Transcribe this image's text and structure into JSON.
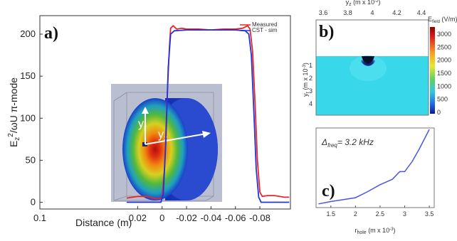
{
  "figure": {
    "panels": [
      "a)",
      "b)",
      "c)"
    ]
  },
  "chart_data": [
    {
      "type": "line",
      "xlabel": "Distance (m)",
      "ylabel_main": "E",
      "ylabel_sub": "z",
      "ylabel_sup": "2",
      "ylabel_rest": "/ωU  π-mode",
      "xlim": [
        0.1,
        -0.105
      ],
      "ylim": [
        -8,
        222
      ],
      "xticks": [
        0.02,
        0,
        -0.02,
        -0.04,
        -0.06,
        -0.08,
        0.1
      ],
      "xtick_labels": [
        "0.02",
        "0",
        "-0.02",
        "-0.04",
        "-0.06",
        "-0.08",
        "0.1"
      ],
      "yticks": [
        0,
        50,
        100,
        150,
        200
      ],
      "ytick_labels": [
        "0",
        "50",
        "100",
        "150",
        "200"
      ],
      "legend_position": "top-right",
      "series": [
        {
          "name": "Measured",
          "color": "#e8262a",
          "x": [
            0.029,
            0.02,
            0.012,
            0.005,
            0.0,
            -0.002,
            -0.004,
            -0.006,
            -0.007,
            -0.009,
            -0.012,
            -0.016,
            -0.02,
            -0.03,
            -0.04,
            -0.05,
            -0.06,
            -0.066,
            -0.07,
            -0.072,
            -0.074,
            -0.076,
            -0.078,
            -0.08,
            -0.082,
            -0.086,
            -0.092,
            -0.1,
            -0.104
          ],
          "y": [
            5,
            7,
            7,
            4,
            5,
            40,
            120,
            185,
            207,
            210,
            206,
            207,
            206,
            206,
            205,
            206,
            206,
            207,
            210,
            206,
            180,
            120,
            50,
            12,
            7,
            8,
            8,
            6,
            6
          ]
        },
        {
          "name": "CST - sim",
          "color": "#2233dd",
          "x": [
            0.029,
            0.02,
            0.01,
            0.004,
            0.001,
            -0.001,
            -0.003,
            -0.005,
            -0.007,
            -0.01,
            -0.02,
            -0.03,
            -0.04,
            -0.05,
            -0.06,
            -0.068,
            -0.071,
            -0.073,
            -0.075,
            -0.077,
            -0.079,
            -0.081,
            -0.085,
            -0.09,
            -0.1,
            -0.104
          ],
          "y": [
            0,
            0,
            0,
            0,
            0,
            10,
            70,
            160,
            200,
            204,
            205,
            205,
            205,
            205,
            205,
            204,
            200,
            175,
            110,
            40,
            6,
            0,
            0,
            0,
            0,
            0
          ]
        }
      ],
      "inset": {
        "label_r": "y",
        "label_r_sub": "r",
        "label_z": "y",
        "label_z_sub": "z"
      }
    },
    {
      "type": "heatmap",
      "top_axis_label": "y",
      "top_axis_label_sub": "z",
      "top_axis_unit": " (m x 10",
      "top_axis_unit_sup": "-2",
      "top_axis_unit_end": ")",
      "xticks": [
        "3.6",
        "3.8",
        "4",
        "4.2",
        "4.4"
      ],
      "ylabel": "y",
      "ylabel_sub": "r",
      "ylabel_unit": " (m x 10",
      "ylabel_unit_sup": "-3",
      "ylabel_unit_end": ")",
      "yticks": [
        "1",
        "2",
        "3",
        "4"
      ],
      "colorbar_label": "E",
      "colorbar_label_sub": "field",
      "colorbar_unit": " (V/m)",
      "colorbar_ticks": [
        "3000",
        "2500",
        "2000",
        "1500",
        "1000",
        "500",
        "0"
      ]
    },
    {
      "type": "line",
      "annotation_delta": "Δ",
      "annotation_sub": "freq",
      "annotation_value": "= 3.2 kHz",
      "xlabel": "r",
      "xlabel_sub": "hole",
      "xlabel_unit": " (m x 10",
      "xlabel_unit_sup": "-3",
      "xlabel_unit_end": ")",
      "xlim": [
        1.2,
        3.6
      ],
      "ylim": [
        0,
        1
      ],
      "xticks": [
        1.5,
        2,
        2.5,
        3,
        3.5
      ],
      "xtick_labels": [
        "1.5",
        "2",
        "2.5",
        "3",
        "3.5"
      ],
      "series": [
        {
          "color": "#4a56e0",
          "x": [
            1.25,
            1.5,
            2.0,
            2.25,
            2.5,
            2.75,
            2.9,
            3.0,
            3.15,
            3.3,
            3.5
          ],
          "y": [
            0.03,
            0.06,
            0.11,
            0.19,
            0.28,
            0.35,
            0.45,
            0.45,
            0.58,
            0.75,
            1.0
          ]
        }
      ]
    }
  ]
}
